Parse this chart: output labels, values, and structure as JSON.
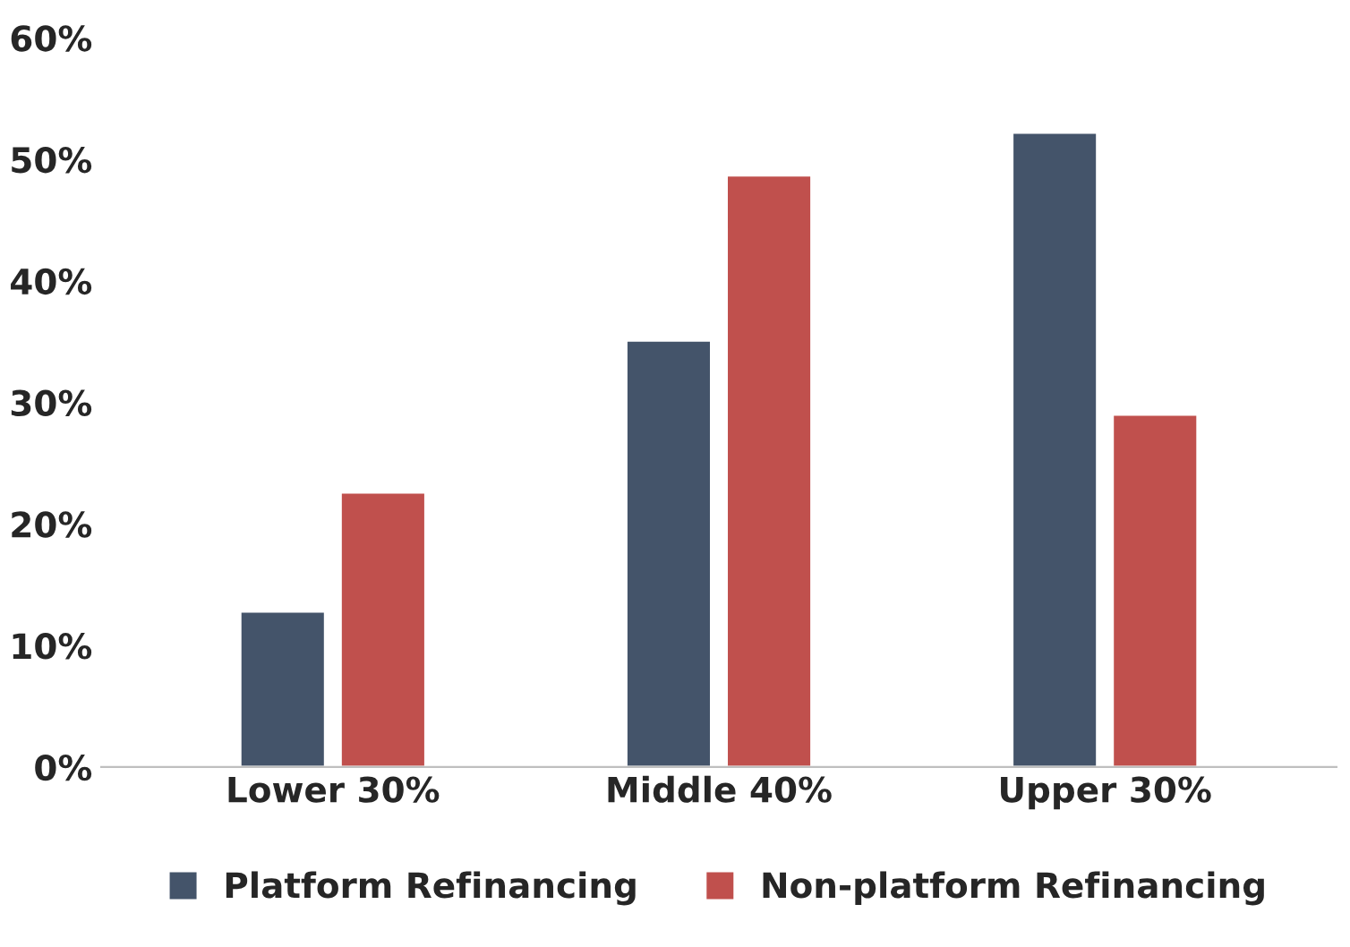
{
  "chart_data": {
    "type": "bar",
    "categories": [
      "Lower 30%",
      "Middle 40%",
      "Upper 30%"
    ],
    "series": [
      {
        "name": "Platform Refinancing",
        "color": "#44546a",
        "values": [
          12.8,
          35.1,
          52.2
        ]
      },
      {
        "name": "Non-platform Refinancing",
        "color": "#c0504d",
        "values": [
          22.6,
          48.7,
          29.0
        ]
      }
    ],
    "ylim": [
      0,
      60
    ],
    "yticks": [
      {
        "value": 0,
        "label": "0%"
      },
      {
        "value": 10,
        "label": "10%"
      },
      {
        "value": 20,
        "label": "20%"
      },
      {
        "value": 30,
        "label": "30%"
      },
      {
        "value": 40,
        "label": "40%"
      },
      {
        "value": 50,
        "label": "50%"
      },
      {
        "value": 60,
        "label": "60%"
      }
    ],
    "grid": false,
    "legend": "bottom"
  }
}
